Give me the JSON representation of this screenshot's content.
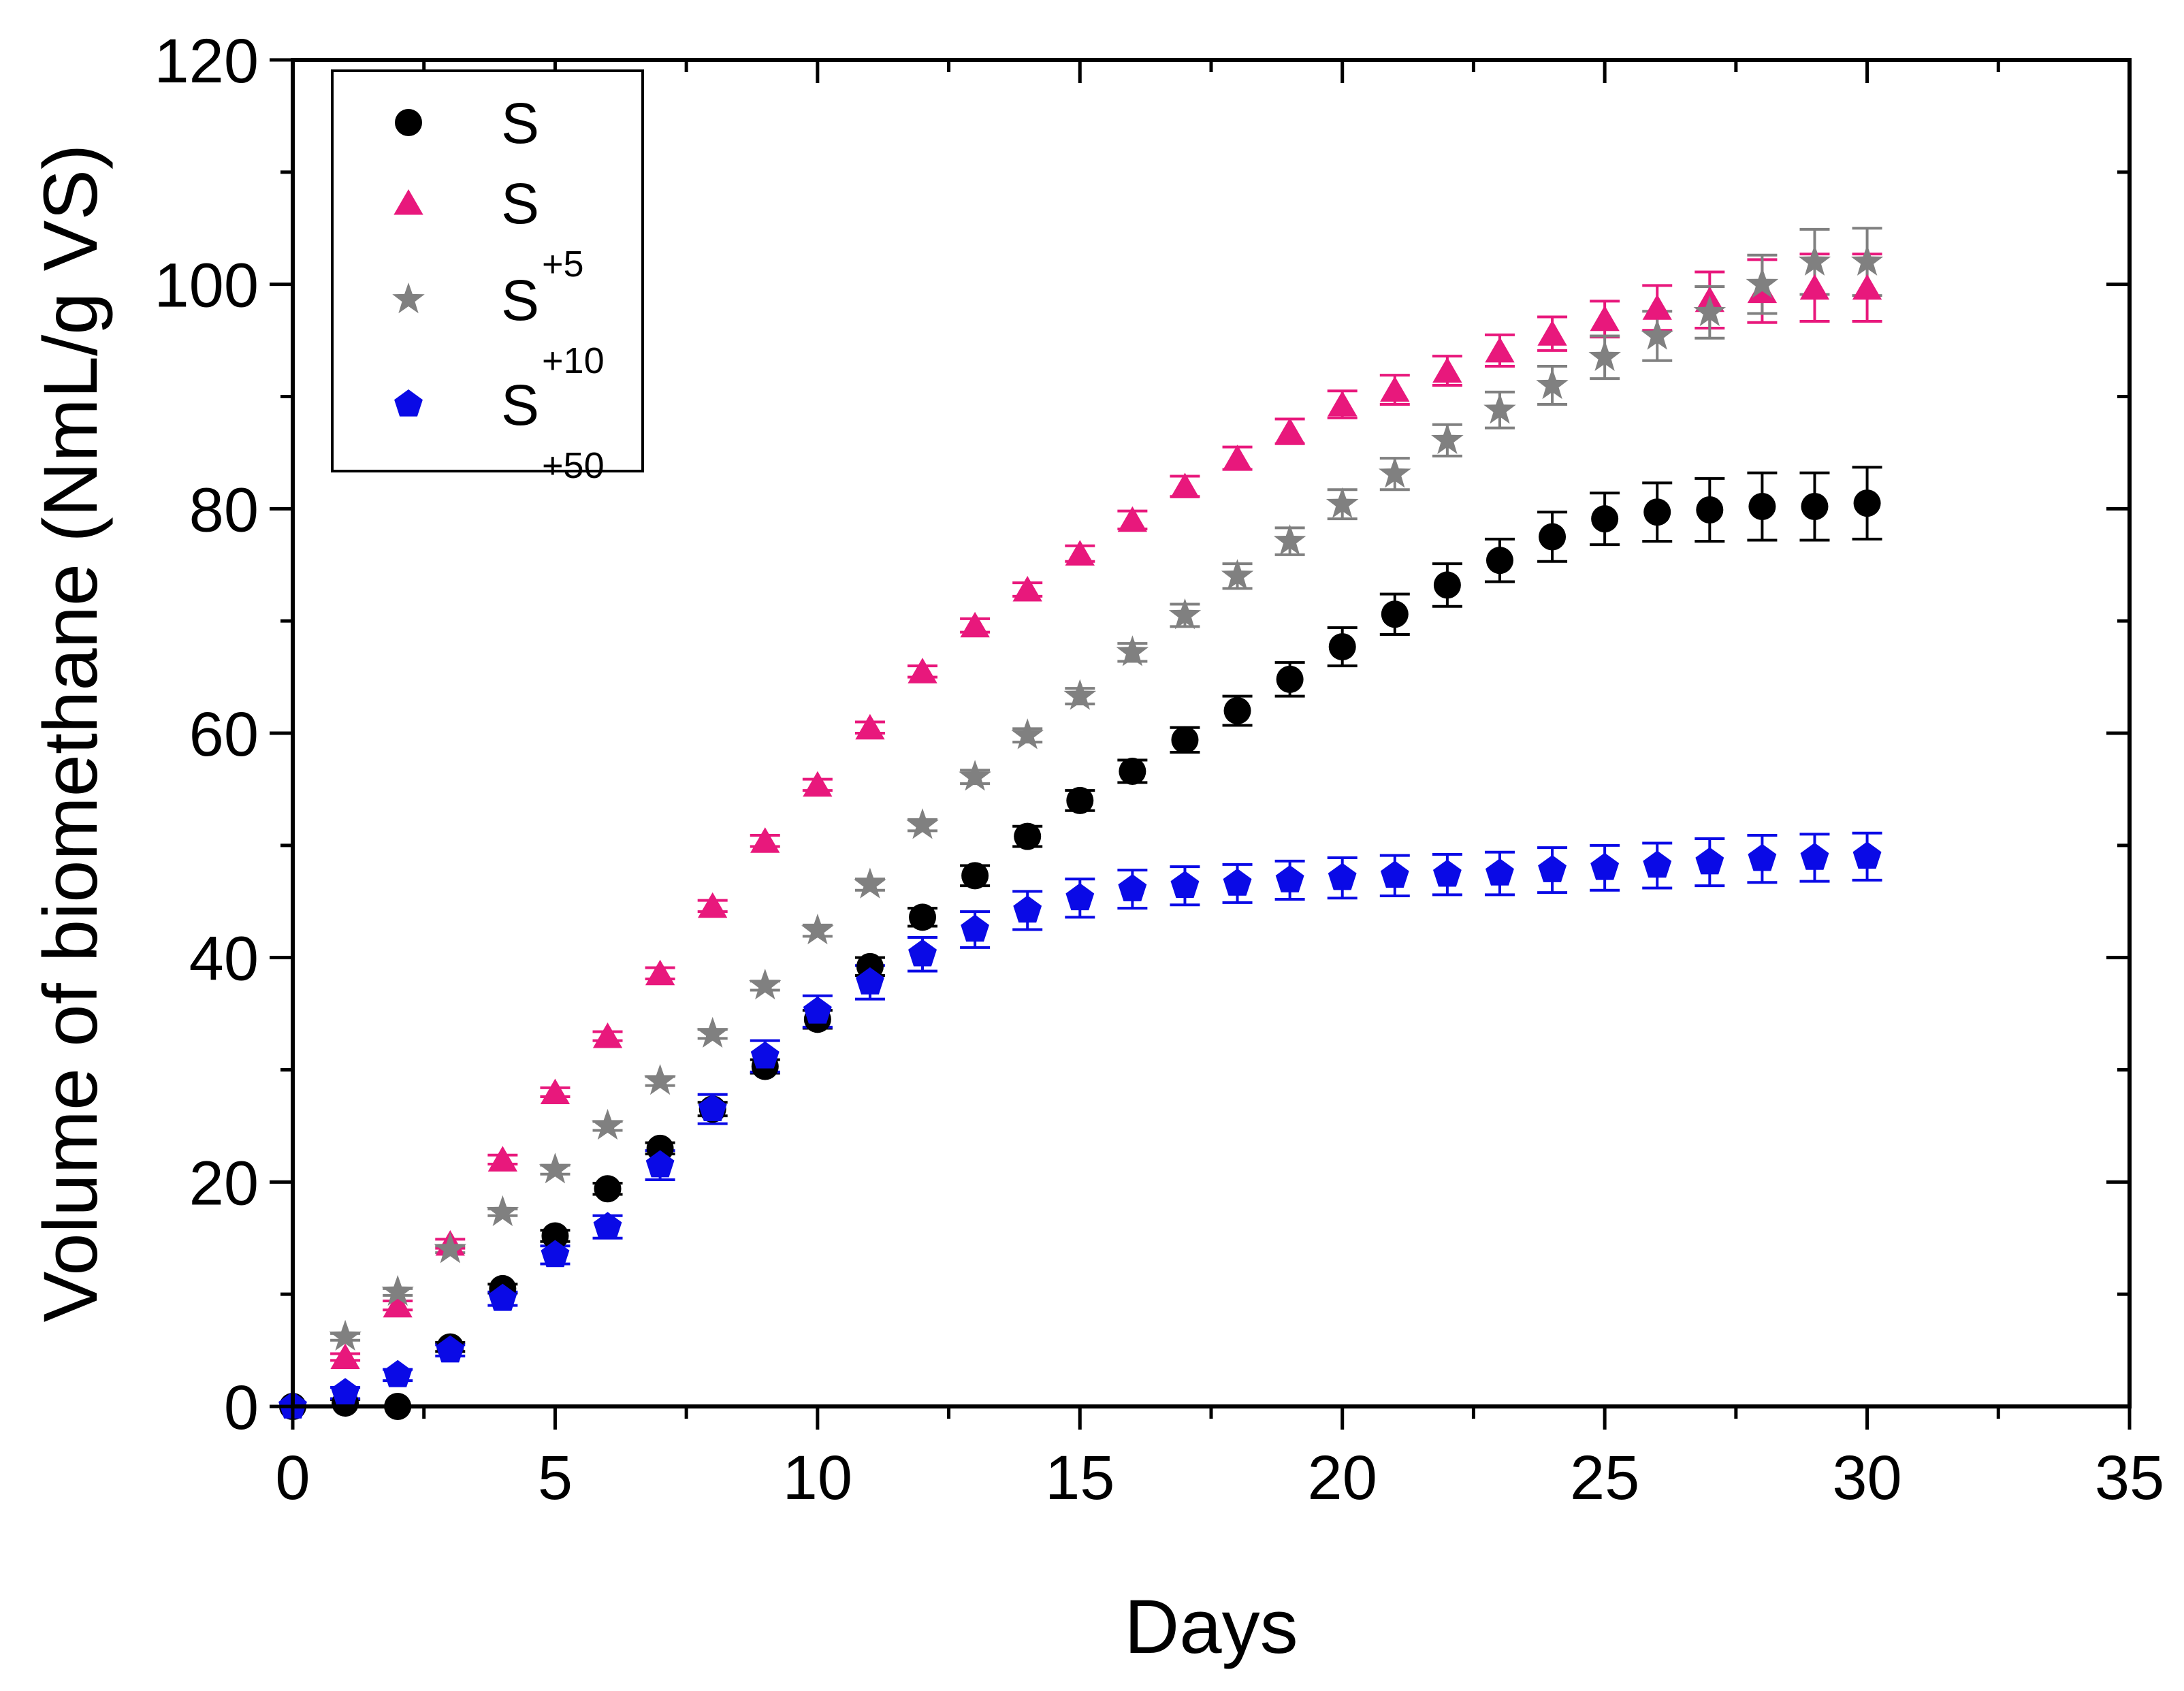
{
  "chart_data": {
    "type": "scatter",
    "xlabel": "Days",
    "ylabel": "Volume of biomethane (NmL/g VS)",
    "xlim": [
      0,
      35
    ],
    "ylim": [
      0,
      120
    ],
    "xticks": [
      0,
      5,
      10,
      15,
      20,
      25,
      30,
      35
    ],
    "yticks": [
      0,
      20,
      40,
      60,
      80,
      100,
      120
    ],
    "xtick_labels": [
      "0",
      "5",
      "10",
      "15",
      "20",
      "25",
      "30",
      "35"
    ],
    "ytick_labels": [
      "0",
      "20",
      "40",
      "60",
      "80",
      "100",
      "120"
    ],
    "grid": false,
    "legend_position": "top-left",
    "series": [
      {
        "name": "S",
        "sub": "",
        "color": "#000000",
        "marker": "circle",
        "x": [
          0,
          1,
          2,
          3,
          4,
          5,
          6,
          7,
          8,
          9,
          10,
          11,
          12,
          13,
          14,
          15,
          16,
          17,
          18,
          19,
          20,
          21,
          22,
          23,
          24,
          25,
          26,
          27,
          28,
          29,
          30
        ],
        "y": [
          0,
          0.3,
          0,
          5.3,
          10.5,
          15.2,
          19.4,
          23,
          26.5,
          30.3,
          34.5,
          39.2,
          43.6,
          47.3,
          50.8,
          54,
          56.6,
          59.4,
          62,
          64.8,
          67.7,
          70.6,
          73.2,
          75.4,
          77.5,
          79.1,
          79.7,
          79.9,
          80.2,
          80.2,
          80.5
        ],
        "err": [
          0,
          0.3,
          0,
          0.4,
          0.4,
          0.5,
          0.5,
          0.5,
          0.6,
          0.6,
          0.8,
          0.8,
          0.8,
          0.9,
          0.9,
          0.9,
          1,
          1.1,
          1.3,
          1.5,
          1.7,
          1.8,
          1.9,
          1.9,
          2.2,
          2.3,
          2.6,
          2.8,
          3,
          3,
          3.2
        ]
      },
      {
        "name": "S",
        "sub": "+5",
        "color": "#e8187c",
        "marker": "triangle",
        "x": [
          1,
          2,
          3,
          4,
          5,
          6,
          7,
          8,
          9,
          10,
          11,
          12,
          13,
          14,
          15,
          16,
          17,
          18,
          19,
          20,
          21,
          22,
          23,
          24,
          25,
          26,
          27,
          28,
          29,
          30
        ],
        "y": [
          4.4,
          9,
          14.5,
          22,
          28,
          33,
          38.6,
          44.6,
          50.4,
          55.4,
          60.5,
          65.5,
          69.6,
          72.8,
          76,
          79,
          82,
          84.5,
          86.9,
          89.3,
          90.6,
          92.3,
          94.1,
          95.6,
          96.9,
          97.9,
          98.6,
          99.4,
          99.7,
          99.7
        ],
        "err": [
          0.3,
          0.4,
          0.4,
          0.4,
          0.4,
          0.4,
          0.5,
          0.5,
          0.5,
          0.5,
          0.5,
          0.5,
          0.6,
          0.6,
          0.7,
          0.8,
          0.9,
          1,
          1.1,
          1.2,
          1.3,
          1.3,
          1.4,
          1.5,
          1.6,
          2,
          2.5,
          2.8,
          3,
          3
        ]
      },
      {
        "name": "S",
        "sub": "+10",
        "color": "#808080",
        "marker": "star",
        "x": [
          1,
          2,
          3,
          4,
          5,
          6,
          7,
          8,
          9,
          10,
          11,
          12,
          13,
          14,
          15,
          16,
          17,
          18,
          19,
          20,
          21,
          22,
          23,
          24,
          25,
          26,
          27,
          28,
          29,
          30
        ],
        "y": [
          6.2,
          10.2,
          14,
          17.3,
          21.1,
          25,
          29,
          33.2,
          37.5,
          42.4,
          46.5,
          51.8,
          56.1,
          59.8,
          63.3,
          67.2,
          70.5,
          74,
          77.1,
          80.4,
          83.1,
          86.1,
          88.8,
          91,
          93.5,
          95.4,
          97.5,
          100,
          102,
          102
        ],
        "err": [
          0.3,
          0.3,
          0.3,
          0.3,
          0.4,
          0.4,
          0.4,
          0.4,
          0.4,
          0.5,
          0.5,
          0.5,
          0.6,
          0.6,
          0.7,
          0.8,
          1,
          1.1,
          1.2,
          1.3,
          1.4,
          1.4,
          1.6,
          1.7,
          1.9,
          2.2,
          2.3,
          2.6,
          2.9,
          3
        ]
      },
      {
        "name": "S",
        "sub": "+50",
        "color": "#0a0ae6",
        "marker": "pentagon",
        "x": [
          0,
          1,
          2,
          3,
          4,
          5,
          6,
          7,
          8,
          9,
          10,
          11,
          12,
          13,
          14,
          15,
          16,
          17,
          18,
          19,
          20,
          21,
          22,
          23,
          24,
          25,
          26,
          27,
          28,
          29,
          30
        ],
        "y": [
          0,
          1.2,
          2.8,
          5,
          9.6,
          13.5,
          16,
          21.5,
          26.5,
          31.2,
          35.2,
          37.8,
          40.3,
          42.5,
          44.2,
          45.3,
          46.1,
          46.4,
          46.6,
          46.9,
          47.1,
          47.3,
          47.4,
          47.5,
          47.8,
          48,
          48.2,
          48.5,
          48.8,
          48.9,
          49
        ],
        "err": [
          0,
          0.5,
          0.5,
          0.5,
          0.6,
          0.8,
          1,
          1.3,
          1.3,
          1.4,
          1.4,
          1.5,
          1.5,
          1.6,
          1.7,
          1.7,
          1.7,
          1.7,
          1.7,
          1.7,
          1.8,
          1.8,
          1.8,
          1.9,
          2,
          2,
          2,
          2.1,
          2.1,
          2.1,
          2.1
        ]
      }
    ]
  }
}
